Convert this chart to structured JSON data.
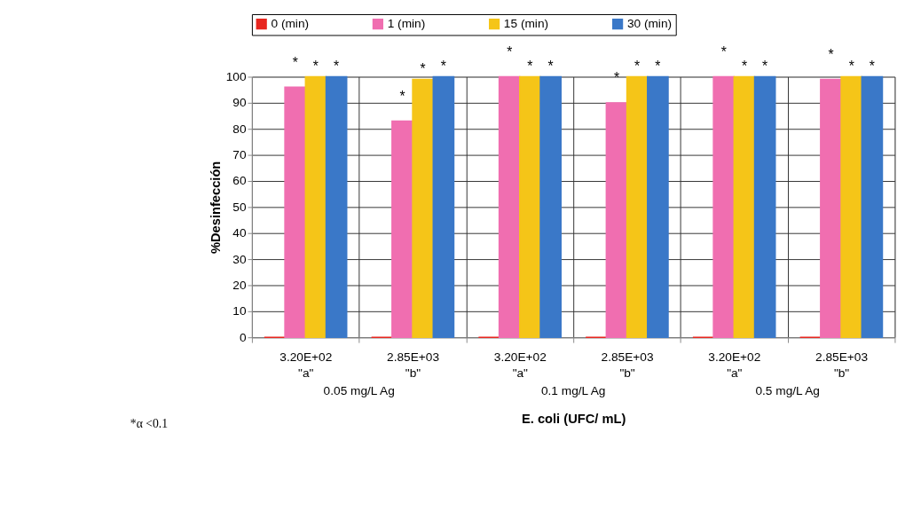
{
  "chart_data": {
    "type": "bar",
    "ylabel": "%Desinfección",
    "xlabel": "E. coli  (UFC/ mL)",
    "categories": [
      "3.20E+02\n\"a\"",
      "2.85E+03\n\"b\"",
      "3.20E+02\n\"a\"",
      "2.85E+03\n\"b\"",
      "3.20E+02\n\"a\"",
      "2.85E+03\n\"b\""
    ],
    "series": [
      {
        "name": "0 (min)",
        "color": "#e8261f",
        "values": [
          0,
          0,
          0,
          0,
          0,
          0
        ]
      },
      {
        "name": "1 (min)",
        "color": "#f06eb0",
        "values": [
          96,
          83,
          100,
          90,
          100,
          99
        ],
        "value_labels": [
          "*",
          "*",
          "*",
          "*",
          "*",
          "*"
        ]
      },
      {
        "name": "15 (min)",
        "color": "#f5c518",
        "values": [
          100,
          99,
          100,
          100,
          100,
          100
        ],
        "value_labels": [
          "*",
          "*",
          "*",
          "*",
          "*",
          "*"
        ]
      },
      {
        "name": "30 (min)",
        "color": "#3a78c8",
        "values": [
          100,
          100,
          100,
          100,
          100,
          100
        ],
        "value_labels": [
          "*",
          "*",
          "*",
          "*",
          "*",
          "*"
        ]
      }
    ],
    "ylim": [
      0,
      100
    ],
    "yticks": [
      0,
      10,
      20,
      30,
      40,
      50,
      60,
      70,
      80,
      90,
      100
    ],
    "grid": true,
    "legend": "top",
    "annotations": [
      "0.05 mg/L Ag",
      "0.1 mg/L Ag",
      "0.5 mg/L Ag",
      "*α <0.1"
    ]
  }
}
